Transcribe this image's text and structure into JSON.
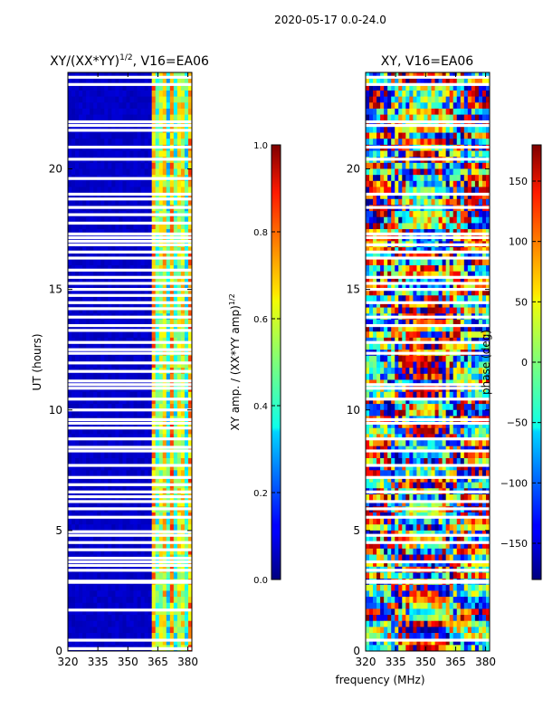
{
  "figure": {
    "suptitle": "2020-05-17 0.0-24.0",
    "shared_xlabel": "frequency (MHz)",
    "colormap": "jet",
    "flag_color": "#ffffff"
  },
  "chart_data": [
    {
      "type": "heatmap",
      "title_main": "XY/(XX*YY)",
      "title_exp": "1/2",
      "title_rest": ", V16=EA06",
      "xlabel": "frequency (MHz)",
      "ylabel": "UT (hours)",
      "xlim": [
        320,
        382
      ],
      "ylim": [
        0,
        24
      ],
      "xticks": [
        320,
        335,
        350,
        365,
        380
      ],
      "yticks": [
        0,
        5,
        10,
        15,
        20
      ],
      "colorbar": {
        "label_main": "XY amp. / (XX*YY amp)",
        "label_exp": "1/2",
        "range": [
          0.0,
          1.0
        ],
        "ticks": [
          "0.0",
          "0.2",
          "0.4",
          "0.6",
          "0.8",
          "1.0"
        ]
      },
      "quantity": "normalized XY amplitude",
      "description_of_data": "low (~0.05) below ~362 MHz; bright striped band 362-382 MHz with values 0.3-0.8",
      "bright_band_start_mhz": 362,
      "flagged_hours": [
        0.1,
        0.45,
        1.7,
        2.85,
        2.9,
        3.35,
        3.55,
        3.7,
        3.85,
        4.2,
        4.5,
        4.8,
        4.95,
        5.55,
        5.9,
        6.2,
        6.4,
        6.6,
        6.9,
        7.2,
        7.7,
        8.3,
        8.45,
        8.8,
        9.25,
        9.45,
        9.6,
        10.0,
        10.45,
        10.9,
        11.05,
        11.2,
        11.6,
        11.95,
        12.35,
        12.5,
        12.8,
        13.3,
        13.5,
        13.85,
        14.2,
        14.45,
        14.75,
        15.0,
        15.25,
        15.5,
        15.8,
        16.3,
        16.55,
        16.85,
        17.0,
        17.15,
        17.3,
        17.75,
        18.1,
        18.4,
        18.75,
        18.95,
        19.6,
        20.4,
        20.9,
        21.6,
        21.8,
        21.95,
        23.5,
        23.8
      ]
    },
    {
      "type": "heatmap",
      "title_main": "XY, V16=EA06",
      "title_exp": "",
      "title_rest": "",
      "xlabel": "frequency (MHz)",
      "ylabel": "",
      "xlim": [
        320,
        382
      ],
      "ylim": [
        0,
        24
      ],
      "xticks": [
        320,
        335,
        350,
        365,
        380
      ],
      "yticks": [
        0,
        5,
        10,
        15,
        20
      ],
      "colorbar": {
        "label_main": "phase (deg)",
        "label_exp": "",
        "range": [
          -180,
          180
        ],
        "ticks": [
          "−150",
          "−100",
          "−50",
          "0",
          "50",
          "100",
          "150"
        ],
        "tick_values": [
          -150,
          -100,
          -50,
          0,
          50,
          100,
          150
        ]
      },
      "quantity": "XY phase (deg)",
      "description_of_data": "noisy phase wrapping across full range with horizontal banding",
      "flagged_hours": [
        0.45,
        2.85,
        2.9,
        3.35,
        3.7,
        4.5,
        4.8,
        5.55,
        5.9,
        6.2,
        6.6,
        7.2,
        7.7,
        8.3,
        8.8,
        9.45,
        9.6,
        10.45,
        10.9,
        11.05,
        12.35,
        12.8,
        13.5,
        13.85,
        14.45,
        15.0,
        15.25,
        15.5,
        16.3,
        16.55,
        16.85,
        17.15,
        17.3,
        18.4,
        18.95,
        20.4,
        20.9,
        21.8,
        21.95,
        23.5,
        23.8
      ]
    }
  ]
}
